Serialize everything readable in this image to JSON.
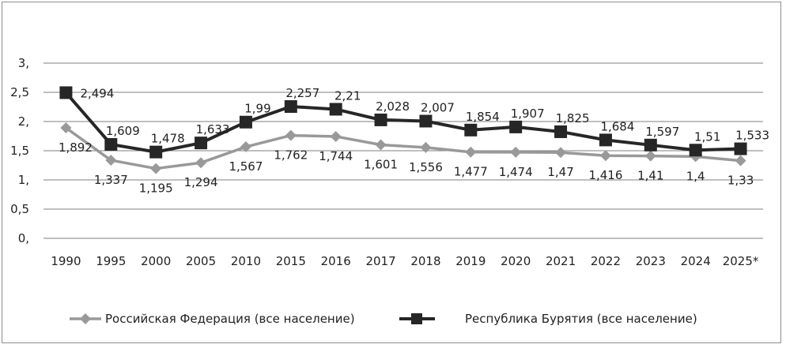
{
  "chart_data": {
    "type": "line",
    "categories": [
      "1990",
      "1995",
      "2000",
      "2005",
      "2010",
      "2015",
      "2016",
      "2017",
      "2018",
      "2019",
      "2020",
      "2021",
      "2022",
      "2023",
      "2024",
      "2025*"
    ],
    "y_ticks": [
      "0,",
      "0,5",
      "1,",
      "1,5",
      "2,",
      "2,5",
      "3,"
    ],
    "y_tick_values": [
      0,
      0.5,
      1,
      1.5,
      2,
      2.5,
      3
    ],
    "ylim": [
      0,
      3
    ],
    "grid": "horizontal",
    "legend_position": "bottom",
    "series": [
      {
        "name": "Российская Федерация (все население)",
        "color": "#999999",
        "marker": "diamond",
        "values": [
          1.892,
          1.337,
          1.195,
          1.294,
          1.567,
          1.762,
          1.744,
          1.601,
          1.556,
          1.477,
          1.474,
          1.47,
          1.416,
          1.41,
          1.4,
          1.33
        ],
        "labels": [
          "1,892",
          "1,337",
          "1,195",
          "1,294",
          "1,567",
          "1,762",
          "1,744",
          "1,601",
          "1,556",
          "1,477",
          "1,474",
          "1,47",
          "1,416",
          "1,41",
          "1,4",
          "1,33"
        ]
      },
      {
        "name": "Республика Бурятия (все население)",
        "color": "#262626",
        "marker": "square",
        "values": [
          2.494,
          1.609,
          1.478,
          1.633,
          1.99,
          2.257,
          2.21,
          2.028,
          2.007,
          1.854,
          1.907,
          1.825,
          1.684,
          1.597,
          1.51,
          1.533
        ],
        "labels": [
          "2,494",
          "1,609",
          "1,478",
          "1,633",
          "1,99",
          "2,257",
          "2,21",
          "2,028",
          "2,007",
          "1,854",
          "1,907",
          "1,825",
          "1,684",
          "1,597",
          "1,51",
          "1,533"
        ]
      }
    ]
  }
}
